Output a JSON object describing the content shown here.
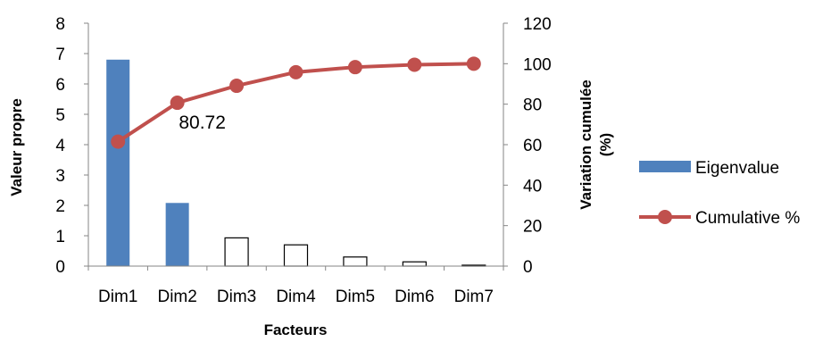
{
  "chart_data": {
    "type": "bar",
    "categories": [
      "Dim1",
      "Dim2",
      "Dim3",
      "Dim4",
      "Dim5",
      "Dim6",
      "Dim7"
    ],
    "series": [
      {
        "name": "Eigenvalue",
        "type": "bar",
        "axis": "left",
        "values": [
          6.8,
          2.08,
          0.93,
          0.7,
          0.3,
          0.14,
          0.03
        ],
        "fills": [
          "#4f81bd",
          "#4f81bd",
          "#ffffff",
          "#ffffff",
          "#ffffff",
          "#ffffff",
          "#ffffff"
        ]
      },
      {
        "name": "Cumulative %",
        "type": "line",
        "axis": "right",
        "values": [
          61.5,
          80.72,
          89.1,
          95.8,
          98.3,
          99.5,
          100.0
        ],
        "color": "#c0504d"
      }
    ],
    "annotations": [
      {
        "series": "Cumulative %",
        "category": "Dim2",
        "text": "80.72"
      }
    ],
    "xlabel": "Facteurs",
    "ylabel": "Valeur propre",
    "ylabel_right": "Variation cumulée (%)",
    "ylim": [
      0,
      8
    ],
    "yticks": [
      0,
      1,
      2,
      3,
      4,
      5,
      6,
      7,
      8
    ],
    "ylim_right": [
      0,
      120
    ],
    "yticks_right": [
      0,
      20,
      40,
      60,
      80,
      100,
      120
    ],
    "grid": false,
    "legend": "right",
    "colors": {
      "bar": "#4f81bd",
      "line": "#c0504d",
      "axis": "#868686"
    }
  }
}
